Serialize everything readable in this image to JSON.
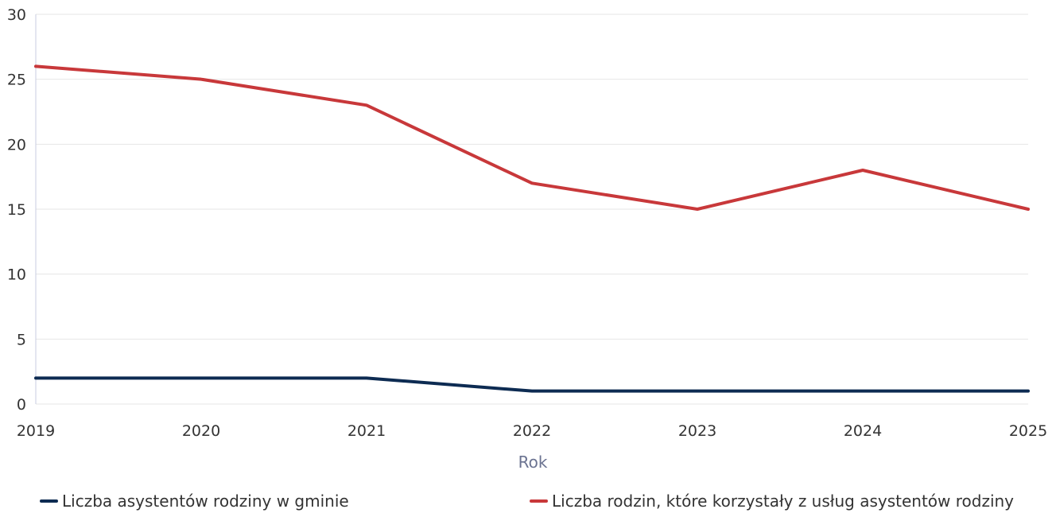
{
  "chart_data": {
    "type": "line",
    "x": [
      "2019",
      "2020",
      "2021",
      "2022",
      "2023",
      "2024",
      "2025"
    ],
    "xlabel": "Rok",
    "ylabel": "",
    "ylim": [
      0,
      30
    ],
    "yticks": [
      0,
      5,
      10,
      15,
      20,
      25,
      30
    ],
    "grid": true,
    "legend_position": "bottom",
    "series": [
      {
        "name": "Liczba asystentów rodziny w gminie",
        "color": "#0d2b52",
        "values": [
          2,
          2,
          2,
          1,
          1,
          1,
          1
        ]
      },
      {
        "name": "Liczba rodzin, które korzystały z usług asystentów rodziny",
        "color": "#c8383a",
        "values": [
          26,
          25,
          23,
          17,
          15,
          18,
          15
        ]
      }
    ]
  }
}
